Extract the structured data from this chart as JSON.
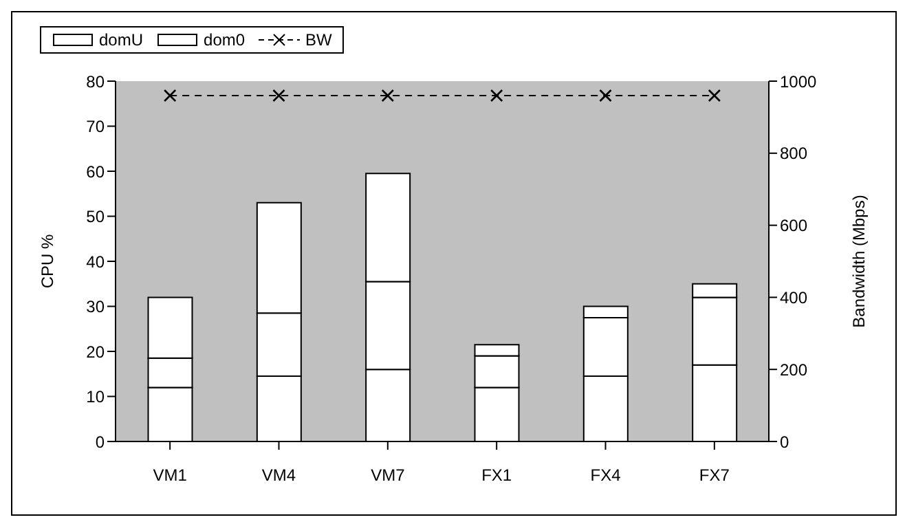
{
  "chart_data": {
    "type": "bar",
    "stacked": true,
    "categories": [
      "VM1",
      "VM4",
      "VM7",
      "FX1",
      "FX4",
      "FX7"
    ],
    "series": [
      {
        "name": "domU",
        "color": "#ffffff",
        "values": [
          12,
          14.5,
          16,
          12,
          14.5,
          17
        ]
      },
      {
        "color": "#ffffff",
        "values": [
          6.5,
          14,
          19.5,
          7,
          13,
          15
        ]
      },
      {
        "name": "dom0",
        "color": "#ffffff",
        "values": [
          13.5,
          24.5,
          24,
          2.5,
          2.5,
          3
        ]
      },
      {
        "name": "BW",
        "type": "line",
        "axis": "y2",
        "color": "#000000",
        "marker": "cross",
        "line_style": "dashed",
        "values": [
          960,
          960,
          960,
          960,
          960,
          960
        ]
      }
    ],
    "ylabel": "CPU %",
    "y2label": "Bandwidth (Mbps)",
    "ylim": [
      0,
      80
    ],
    "yticks": [
      0,
      10,
      20,
      30,
      40,
      50,
      60,
      70,
      80
    ],
    "y2lim": [
      0,
      1000
    ],
    "y2ticks": [
      0,
      200,
      400,
      600,
      800,
      1000
    ],
    "grid": false,
    "legend": "top"
  }
}
